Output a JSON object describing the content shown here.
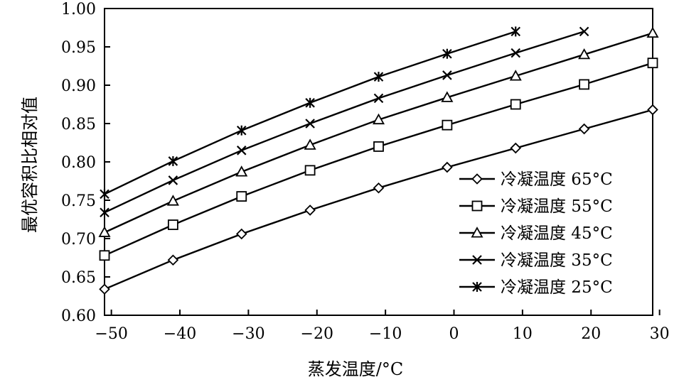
{
  "chart_data": {
    "type": "line",
    "title": "",
    "xlabel": "蒸发温度/°C",
    "ylabel": "最优容积比相对值",
    "xlim": [
      -51,
      29
    ],
    "ylim": [
      0.6,
      1.0
    ],
    "x_ticks": [
      -50,
      -40,
      -30,
      -20,
      -10,
      0,
      10,
      20,
      30
    ],
    "x_tick_labels": [
      "−50",
      "−40",
      "−30",
      "−20",
      "−10",
      "0",
      "10",
      "20",
      "30"
    ],
    "y_ticks": [
      0.6,
      0.65,
      0.7,
      0.75,
      0.8,
      0.85,
      0.9,
      0.95,
      1.0
    ],
    "y_tick_labels": [
      "0.60",
      "0.65",
      "0.70",
      "0.75",
      "0.80",
      "0.85",
      "0.90",
      "0.95",
      "1.00"
    ],
    "grid": false,
    "legend_position": "bottom-right",
    "series": [
      {
        "name": "冷凝温度 65°C",
        "marker": "diamond",
        "x": [
          -51,
          -41,
          -31,
          -21,
          -11,
          -1,
          9,
          19,
          29
        ],
        "y": [
          0.634,
          0.672,
          0.706,
          0.737,
          0.766,
          0.793,
          0.818,
          0.843,
          0.868
        ]
      },
      {
        "name": "冷凝温度 55°C",
        "marker": "square",
        "x": [
          -51,
          -41,
          -31,
          -21,
          -11,
          -1,
          9,
          19,
          29
        ],
        "y": [
          0.678,
          0.718,
          0.755,
          0.789,
          0.82,
          0.848,
          0.875,
          0.901,
          0.929
        ]
      },
      {
        "name": "冷凝温度 45°C",
        "marker": "triangle",
        "x": [
          -51,
          -41,
          -31,
          -21,
          -11,
          -1,
          9,
          19,
          29
        ],
        "y": [
          0.708,
          0.749,
          0.787,
          0.822,
          0.855,
          0.884,
          0.912,
          0.94,
          0.968
        ]
      },
      {
        "name": "冷凝温度 35°C",
        "marker": "x",
        "x": [
          -51,
          -41,
          -31,
          -21,
          -11,
          -1,
          9,
          19
        ],
        "y": [
          0.734,
          0.776,
          0.815,
          0.85,
          0.883,
          0.913,
          0.942,
          0.97
        ]
      },
      {
        "name": "冷凝温度 25°C",
        "marker": "asterisk",
        "x": [
          -51,
          -41,
          -31,
          -21,
          -11,
          -1,
          9
        ],
        "y": [
          0.758,
          0.801,
          0.841,
          0.877,
          0.911,
          0.941,
          0.97
        ]
      }
    ]
  }
}
